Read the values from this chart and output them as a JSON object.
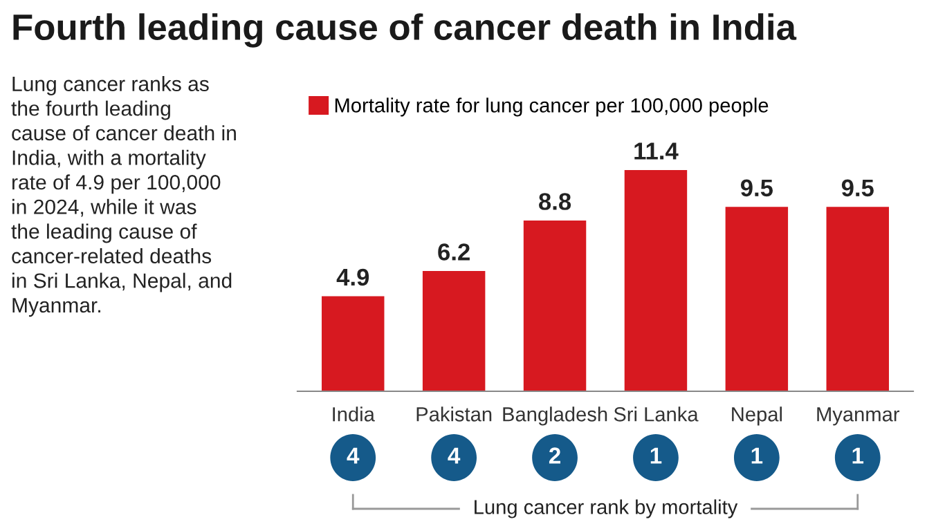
{
  "chart_data": {
    "type": "bar",
    "title": "Fourth leading cause of cancer death in India",
    "categories": [
      "India",
      "Pakistan",
      "Bangladesh",
      "Sri Lanka",
      "Nepal",
      "Myanmar"
    ],
    "series": [
      {
        "name": "Mortality rate for lung cancer per 100,000 people",
        "color": "#d71920",
        "values": [
          4.9,
          6.2,
          8.8,
          11.4,
          9.5,
          9.5
        ]
      }
    ],
    "data_labels": true,
    "legend": "top left",
    "grid": false,
    "annotations": [
      "Lung cancer ranks as\nthe fourth leading\ncause of cancer death in\nIndia, with a mortality\nrate of 4.9 per 100,000\nin 2024, while it was\nthe leading cause of\ncancer-related deaths\nin Sri Lanka, Nepal, and\nMyanmar.",
      "4",
      "4",
      "2",
      "1",
      "1",
      "1",
      "Lung cancer rank by mortality"
    ]
  }
}
